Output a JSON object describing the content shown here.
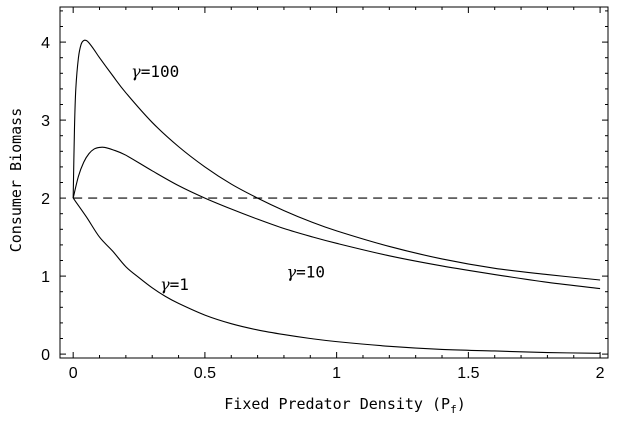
{
  "chart_data": {
    "type": "line",
    "title": "",
    "xlabel": "Fixed Predator Density (P",
    "xlabel_sub": "f",
    "xlabel_close": ")",
    "ylabel": "Consumer Biomass",
    "xlim": [
      -0.05,
      2.03
    ],
    "ylim": [
      -0.05,
      4.45
    ],
    "xticks": [
      0,
      0.5,
      1,
      1.5,
      2
    ],
    "xtick_labels": [
      "0",
      "0.5",
      "1",
      "1.5",
      "2"
    ],
    "yticks": [
      0,
      1,
      2,
      3,
      4
    ],
    "ytick_labels": [
      "0",
      "1",
      "2",
      "3",
      "4"
    ],
    "grid": false,
    "series": [
      {
        "name": "γ=100",
        "style": "solid",
        "x": [
          0,
          0.005,
          0.01,
          0.02,
          0.03,
          0.04,
          0.05,
          0.06,
          0.08,
          0.1,
          0.15,
          0.2,
          0.3,
          0.4,
          0.5,
          0.6,
          0.7,
          0.8,
          0.9,
          1.0,
          1.2,
          1.4,
          1.6,
          1.8,
          2.0
        ],
        "y": [
          2.0,
          2.9,
          3.4,
          3.8,
          3.97,
          4.02,
          4.02,
          3.99,
          3.9,
          3.8,
          3.57,
          3.35,
          2.97,
          2.66,
          2.4,
          2.18,
          2.0,
          1.84,
          1.7,
          1.58,
          1.38,
          1.22,
          1.1,
          1.02,
          0.95
        ]
      },
      {
        "name": "γ=10",
        "style": "solid",
        "x": [
          0,
          0.02,
          0.04,
          0.06,
          0.08,
          0.1,
          0.12,
          0.15,
          0.2,
          0.3,
          0.4,
          0.5,
          0.6,
          0.7,
          0.8,
          0.9,
          1.0,
          1.2,
          1.4,
          1.6,
          1.8,
          2.0
        ],
        "y": [
          2.0,
          2.28,
          2.46,
          2.57,
          2.63,
          2.65,
          2.65,
          2.62,
          2.55,
          2.35,
          2.16,
          2.0,
          1.86,
          1.73,
          1.61,
          1.51,
          1.42,
          1.26,
          1.13,
          1.02,
          0.92,
          0.84
        ]
      },
      {
        "name": "γ=1",
        "style": "solid",
        "x": [
          0,
          0.05,
          0.1,
          0.15,
          0.2,
          0.25,
          0.3,
          0.35,
          0.4,
          0.5,
          0.6,
          0.7,
          0.8,
          0.9,
          1.0,
          1.2,
          1.4,
          1.6,
          1.8,
          2.0
        ],
        "y": [
          2.0,
          1.76,
          1.5,
          1.32,
          1.12,
          0.98,
          0.85,
          0.74,
          0.65,
          0.5,
          0.39,
          0.31,
          0.25,
          0.2,
          0.16,
          0.1,
          0.06,
          0.04,
          0.02,
          0.01
        ]
      },
      {
        "name": "",
        "style": "dashed",
        "x": [
          0,
          2
        ],
        "y": [
          2,
          2
        ]
      }
    ],
    "annotations": [
      {
        "gamma": "γ",
        "rest": "=100",
        "x": 0.22,
        "y": 3.55
      },
      {
        "gamma": "γ",
        "rest": "=10",
        "x": 0.81,
        "y": 0.98
      },
      {
        "gamma": "γ",
        "rest": "=1",
        "x": 0.33,
        "y": 0.82
      }
    ]
  }
}
